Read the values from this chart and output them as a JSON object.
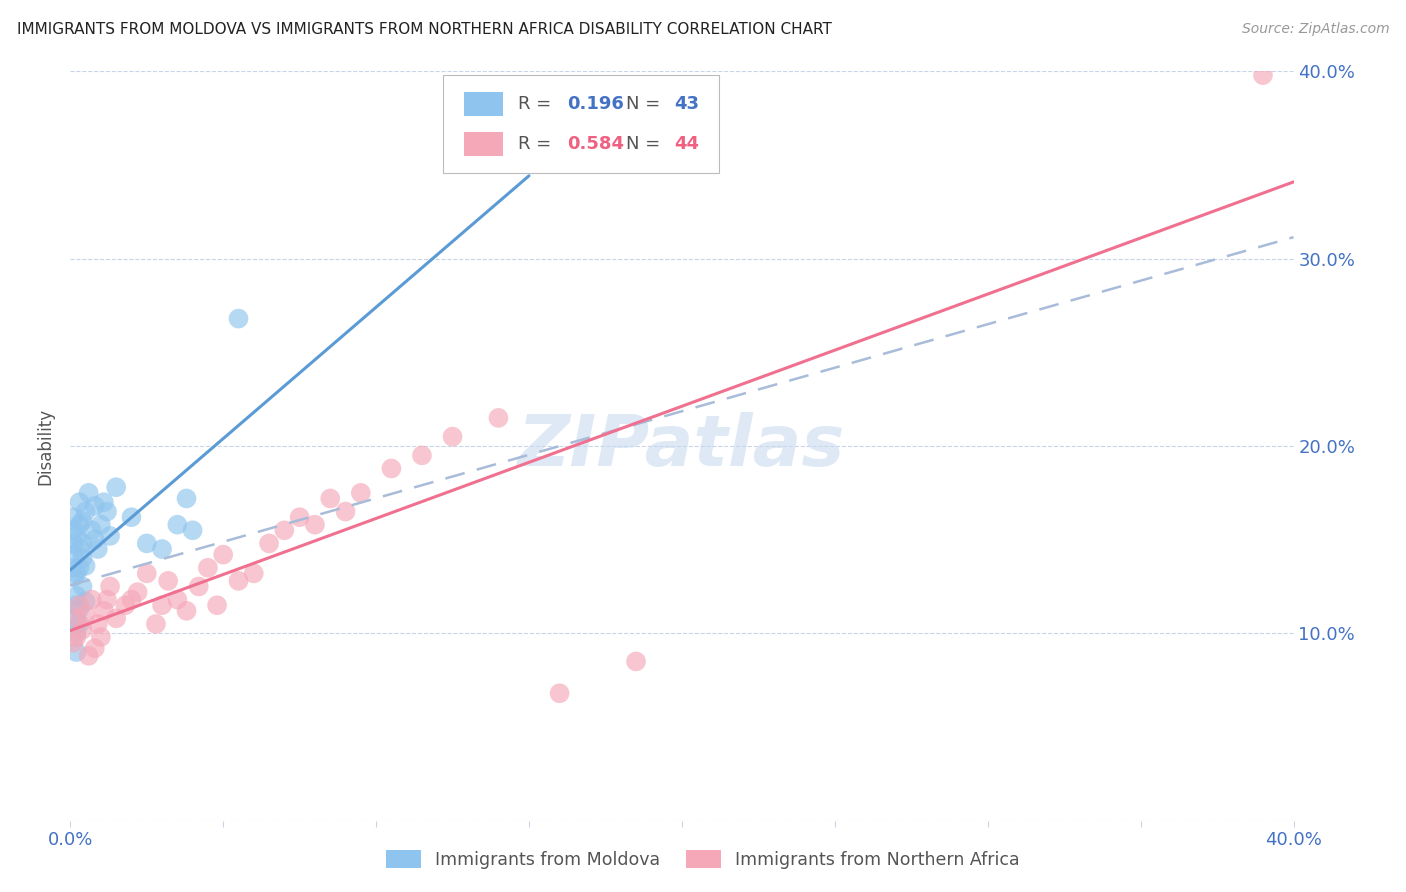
{
  "title": "IMMIGRANTS FROM MOLDOVA VS IMMIGRANTS FROM NORTHERN AFRICA DISABILITY CORRELATION CHART",
  "source": "Source: ZipAtlas.com",
  "ylabel": "Disability",
  "xlim": [
    0.0,
    0.4
  ],
  "ylim": [
    0.0,
    0.4
  ],
  "color_moldova": "#8EC4EE",
  "color_n_africa": "#F5A8B8",
  "color_line_moldova": "#5B9BD5",
  "color_line_n_africa": "#F07090",
  "color_dashed": "#A8BBD8",
  "R_moldova": 0.196,
  "N_moldova": 43,
  "R_n_africa": 0.584,
  "N_n_africa": 44,
  "watermark": "ZIPatlas",
  "legend_label_moldova": "Immigrants from Moldova",
  "legend_label_n_africa": "Immigrants from Northern Africa",
  "moldova_x": [
    0.001,
    0.001,
    0.001,
    0.001,
    0.001,
    0.001,
    0.002,
    0.002,
    0.002,
    0.002,
    0.002,
    0.002,
    0.002,
    0.003,
    0.003,
    0.003,
    0.003,
    0.003,
    0.003,
    0.004,
    0.004,
    0.004,
    0.004,
    0.005,
    0.005,
    0.005,
    0.006,
    0.007,
    0.008,
    0.008,
    0.009,
    0.01,
    0.011,
    0.012,
    0.013,
    0.015,
    0.02,
    0.025,
    0.03,
    0.035,
    0.038,
    0.04,
    0.055
  ],
  "moldova_y": [
    0.13,
    0.135,
    0.142,
    0.148,
    0.155,
    0.162,
    0.09,
    0.1,
    0.108,
    0.115,
    0.12,
    0.132,
    0.152,
    0.105,
    0.113,
    0.135,
    0.145,
    0.158,
    0.17,
    0.125,
    0.14,
    0.148,
    0.16,
    0.117,
    0.136,
    0.165,
    0.175,
    0.155,
    0.15,
    0.168,
    0.145,
    0.158,
    0.17,
    0.165,
    0.152,
    0.178,
    0.162,
    0.148,
    0.145,
    0.158,
    0.172,
    0.155,
    0.268
  ],
  "n_africa_x": [
    0.001,
    0.002,
    0.002,
    0.003,
    0.004,
    0.005,
    0.006,
    0.007,
    0.008,
    0.009,
    0.01,
    0.011,
    0.012,
    0.013,
    0.015,
    0.018,
    0.02,
    0.022,
    0.025,
    0.028,
    0.03,
    0.032,
    0.035,
    0.038,
    0.042,
    0.045,
    0.048,
    0.05,
    0.055,
    0.06,
    0.065,
    0.07,
    0.075,
    0.08,
    0.085,
    0.09,
    0.095,
    0.105,
    0.115,
    0.125,
    0.14,
    0.16,
    0.185,
    0.39
  ],
  "n_africa_y": [
    0.095,
    0.098,
    0.108,
    0.115,
    0.102,
    0.11,
    0.088,
    0.118,
    0.092,
    0.105,
    0.098,
    0.112,
    0.118,
    0.125,
    0.108,
    0.115,
    0.118,
    0.122,
    0.132,
    0.105,
    0.115,
    0.128,
    0.118,
    0.112,
    0.125,
    0.135,
    0.115,
    0.142,
    0.128,
    0.132,
    0.148,
    0.155,
    0.162,
    0.158,
    0.172,
    0.165,
    0.175,
    0.188,
    0.195,
    0.205,
    0.215,
    0.068,
    0.085,
    0.398
  ]
}
